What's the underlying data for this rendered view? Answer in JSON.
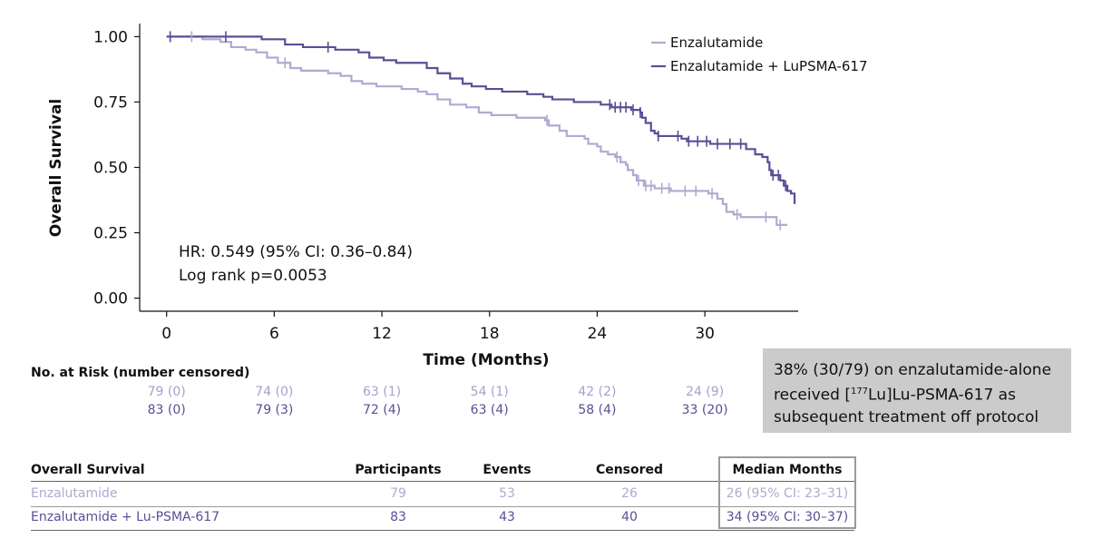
{
  "chart_data": {
    "type": "line",
    "subtype": "kaplan-meier",
    "xlabel": "Time (Months)",
    "ylabel": "Overall Survival",
    "xlim": [
      -1.5,
      35.2
    ],
    "ylim": [
      -0.05,
      1.05
    ],
    "x_ticks": [
      0,
      6,
      12,
      18,
      24,
      30
    ],
    "y_ticks": [
      0.0,
      0.25,
      0.5,
      0.75,
      1.0
    ],
    "y_tick_labels": [
      "0.00",
      "0.25",
      "0.50",
      "0.75",
      "1.00"
    ],
    "legend_position": "top-right",
    "annotations": [
      "HR: 0.549 (95% CI: 0.36–0.84)",
      "Log rank p=0.0053"
    ],
    "series": [
      {
        "name": "Enzalutamide",
        "color": "#b1a9d1",
        "steps": [
          [
            0,
            1.0
          ],
          [
            2.0,
            0.99
          ],
          [
            3.0,
            0.98
          ],
          [
            3.6,
            0.96
          ],
          [
            4.4,
            0.95
          ],
          [
            5.0,
            0.94
          ],
          [
            5.6,
            0.92
          ],
          [
            6.2,
            0.9
          ],
          [
            6.9,
            0.88
          ],
          [
            7.5,
            0.87
          ],
          [
            9.0,
            0.86
          ],
          [
            9.7,
            0.85
          ],
          [
            10.3,
            0.83
          ],
          [
            10.9,
            0.82
          ],
          [
            11.7,
            0.81
          ],
          [
            13.1,
            0.8
          ],
          [
            14.0,
            0.79
          ],
          [
            14.5,
            0.78
          ],
          [
            15.1,
            0.76
          ],
          [
            15.8,
            0.74
          ],
          [
            16.7,
            0.73
          ],
          [
            17.4,
            0.71
          ],
          [
            18.1,
            0.7
          ],
          [
            19.5,
            0.69
          ],
          [
            21.1,
            0.68
          ],
          [
            21.3,
            0.66
          ],
          [
            21.9,
            0.64
          ],
          [
            22.3,
            0.62
          ],
          [
            23.3,
            0.61
          ],
          [
            23.5,
            0.59
          ],
          [
            24.0,
            0.58
          ],
          [
            24.2,
            0.56
          ],
          [
            24.6,
            0.55
          ],
          [
            25.0,
            0.54
          ],
          [
            25.3,
            0.52
          ],
          [
            25.6,
            0.51
          ],
          [
            25.7,
            0.49
          ],
          [
            26.0,
            0.47
          ],
          [
            26.2,
            0.45
          ],
          [
            26.6,
            0.43
          ],
          [
            27.2,
            0.42
          ],
          [
            28.1,
            0.41
          ],
          [
            30.2,
            0.4
          ],
          [
            30.7,
            0.38
          ],
          [
            31.0,
            0.36
          ],
          [
            31.2,
            0.33
          ],
          [
            31.6,
            0.32
          ],
          [
            32.0,
            0.31
          ],
          [
            34.0,
            0.28
          ],
          [
            34.6,
            0.28
          ]
        ],
        "censor_times": [
          0.2,
          1.4,
          6.6,
          21.2,
          25.1,
          26.3,
          26.7,
          27.0,
          27.6,
          28.0,
          28.9,
          29.5,
          30.4,
          31.8,
          33.4,
          34.2
        ],
        "risk_table": [
          "79 (0)",
          "74 (0)",
          "63 (1)",
          "54 (1)",
          "42 (2)",
          "24 (9)"
        ]
      },
      {
        "name": "Enzalutamide + LuPSMA-617",
        "color": "#5d4d95",
        "steps": [
          [
            0,
            1.0
          ],
          [
            5.3,
            0.99
          ],
          [
            6.6,
            0.97
          ],
          [
            7.6,
            0.96
          ],
          [
            9.4,
            0.95
          ],
          [
            10.7,
            0.94
          ],
          [
            11.3,
            0.92
          ],
          [
            12.1,
            0.91
          ],
          [
            12.8,
            0.9
          ],
          [
            14.5,
            0.88
          ],
          [
            15.1,
            0.86
          ],
          [
            15.8,
            0.84
          ],
          [
            16.5,
            0.82
          ],
          [
            17.0,
            0.81
          ],
          [
            17.8,
            0.8
          ],
          [
            18.7,
            0.79
          ],
          [
            20.1,
            0.78
          ],
          [
            21.0,
            0.77
          ],
          [
            21.5,
            0.76
          ],
          [
            22.7,
            0.75
          ],
          [
            24.2,
            0.74
          ],
          [
            24.8,
            0.73
          ],
          [
            25.9,
            0.72
          ],
          [
            26.4,
            0.71
          ],
          [
            26.5,
            0.69
          ],
          [
            26.7,
            0.67
          ],
          [
            27.0,
            0.64
          ],
          [
            27.2,
            0.63
          ],
          [
            27.4,
            0.62
          ],
          [
            28.7,
            0.61
          ],
          [
            29.0,
            0.6
          ],
          [
            30.3,
            0.59
          ],
          [
            32.3,
            0.57
          ],
          [
            32.8,
            0.55
          ],
          [
            33.2,
            0.54
          ],
          [
            33.5,
            0.52
          ],
          [
            33.6,
            0.49
          ],
          [
            33.7,
            0.47
          ],
          [
            34.2,
            0.45
          ],
          [
            34.4,
            0.43
          ],
          [
            34.6,
            0.41
          ],
          [
            34.8,
            0.4
          ],
          [
            35.0,
            0.36
          ]
        ],
        "censor_times": [
          0.2,
          3.3,
          9.0,
          24.7,
          25.0,
          25.3,
          25.6,
          26.0,
          26.4,
          27.4,
          28.5,
          29.1,
          29.6,
          30.1,
          30.7,
          31.4,
          32.0,
          33.8,
          34.1,
          34.5
        ],
        "risk_table": [
          "83 (0)",
          "79 (3)",
          "72 (4)",
          "63 (4)",
          "58 (4)",
          "33 (20)"
        ]
      }
    ]
  },
  "risk": {
    "title": "No. at Risk (number censored)"
  },
  "note": {
    "line1": "38% (30/79) on enzalutamide-alone",
    "line2_pre": "received [",
    "line2_sup": "177",
    "line2_post": "Lu]Lu-PSMA-617 as",
    "line3": "subsequent treatment off protocol"
  },
  "table": {
    "headers": [
      "Overall Survival",
      "Participants",
      "Events",
      "Censored",
      "Median Months"
    ],
    "rows": [
      [
        "Enzalutamide",
        "79",
        "53",
        "26",
        "26 (95% CI: 23–31)"
      ],
      [
        "Enzalutamide + Lu-PSMA-617",
        "83",
        "43",
        "40",
        "34 (95% CI: 30–37)"
      ]
    ]
  }
}
